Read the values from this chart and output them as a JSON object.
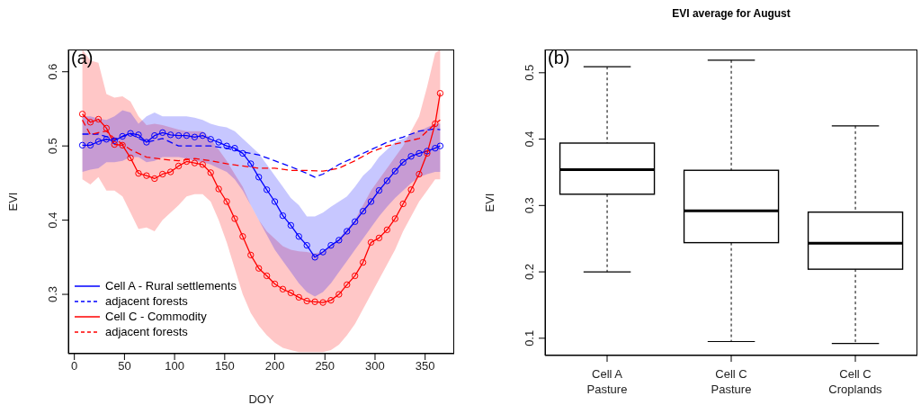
{
  "chart_data": [
    {
      "type": "line",
      "xlabel": "DOY",
      "ylabel": "EVI",
      "annotations": [
        "(a)"
      ],
      "x": [
        8,
        16,
        24,
        32,
        40,
        48,
        56,
        64,
        72,
        80,
        88,
        96,
        104,
        112,
        120,
        128,
        136,
        144,
        152,
        160,
        168,
        176,
        184,
        192,
        200,
        208,
        216,
        224,
        232,
        240,
        248,
        256,
        264,
        272,
        280,
        288,
        296,
        304,
        312,
        320,
        328,
        336,
        344,
        352,
        360,
        365
      ],
      "xlim": [
        -6,
        379
      ],
      "xticks": [
        0,
        50,
        100,
        150,
        200,
        250,
        300,
        350
      ],
      "ylim": [
        0.22,
        0.63
      ],
      "yticks": [
        0.3,
        0.4,
        0.5,
        0.6
      ],
      "legend": "bottom left",
      "series": [
        {
          "name": "Cell A - Rural settlements",
          "color": "#0000ff",
          "marker": "circle",
          "line_style": "solid",
          "values": [
            0.501,
            0.501,
            0.506,
            0.509,
            0.507,
            0.513,
            0.517,
            0.515,
            0.505,
            0.514,
            0.518,
            0.515,
            0.514,
            0.514,
            0.512,
            0.514,
            0.509,
            0.505,
            0.5,
            0.497,
            0.49,
            0.476,
            0.458,
            0.441,
            0.425,
            0.406,
            0.393,
            0.378,
            0.366,
            0.35,
            0.357,
            0.366,
            0.373,
            0.385,
            0.398,
            0.412,
            0.425,
            0.44,
            0.453,
            0.466,
            0.478,
            0.486,
            0.49,
            0.493,
            0.497,
            0.5
          ],
          "lower": [
            0.465,
            0.468,
            0.47,
            0.478,
            0.478,
            0.48,
            0.485,
            0.485,
            0.478,
            0.48,
            0.485,
            0.485,
            0.485,
            0.483,
            0.48,
            0.478,
            0.475,
            0.47,
            0.465,
            0.455,
            0.44,
            0.42,
            0.4,
            0.38,
            0.36,
            0.345,
            0.33,
            0.315,
            0.303,
            0.297,
            0.303,
            0.315,
            0.33,
            0.345,
            0.36,
            0.375,
            0.39,
            0.405,
            0.418,
            0.43,
            0.44,
            0.45,
            0.458,
            0.462,
            0.465,
            0.465
          ],
          "upper": [
            0.54,
            0.54,
            0.537,
            0.535,
            0.54,
            0.548,
            0.545,
            0.53,
            0.54,
            0.545,
            0.54,
            0.54,
            0.54,
            0.54,
            0.538,
            0.535,
            0.53,
            0.527,
            0.525,
            0.52,
            0.51,
            0.5,
            0.49,
            0.475,
            0.46,
            0.445,
            0.43,
            0.42,
            0.405,
            0.405,
            0.41,
            0.418,
            0.425,
            0.432,
            0.445,
            0.46,
            0.47,
            0.485,
            0.495,
            0.505,
            0.51,
            0.515,
            0.52,
            0.525,
            0.53,
            0.53
          ]
        },
        {
          "name": "adjacent forests",
          "color": "#0000ff",
          "marker": "none",
          "line_style": "dashed",
          "x": [
            8,
            24,
            40,
            56,
            72,
            88,
            104,
            120,
            136,
            152,
            168,
            184,
            200,
            216,
            232,
            240,
            248,
            264,
            280,
            296,
            312,
            328,
            344,
            360,
            365
          ],
          "values": [
            0.516,
            0.516,
            0.509,
            0.516,
            0.505,
            0.51,
            0.5,
            0.5,
            0.5,
            0.497,
            0.492,
            0.488,
            0.48,
            0.472,
            0.463,
            0.458,
            0.462,
            0.475,
            0.485,
            0.495,
            0.505,
            0.512,
            0.52,
            0.523,
            0.522
          ]
        },
        {
          "name": "Cell C - Commodity",
          "color": "#ff0000",
          "marker": "circle",
          "line_style": "solid",
          "values": [
            0.543,
            0.532,
            0.536,
            0.524,
            0.502,
            0.501,
            0.484,
            0.463,
            0.46,
            0.456,
            0.462,
            0.465,
            0.473,
            0.479,
            0.477,
            0.475,
            0.464,
            0.442,
            0.425,
            0.402,
            0.378,
            0.353,
            0.335,
            0.325,
            0.314,
            0.307,
            0.302,
            0.296,
            0.291,
            0.29,
            0.289,
            0.292,
            0.3,
            0.313,
            0.325,
            0.343,
            0.37,
            0.376,
            0.387,
            0.402,
            0.422,
            0.441,
            0.462,
            0.49,
            0.53,
            0.571
          ],
          "lower": [
            0.455,
            0.448,
            0.458,
            0.44,
            0.44,
            0.432,
            0.41,
            0.388,
            0.39,
            0.385,
            0.4,
            0.41,
            0.42,
            0.432,
            0.435,
            0.435,
            0.425,
            0.4,
            0.37,
            0.335,
            0.3,
            0.275,
            0.258,
            0.245,
            0.235,
            0.228,
            0.225,
            0.222,
            0.222,
            0.222,
            0.222,
            0.225,
            0.232,
            0.245,
            0.26,
            0.28,
            0.3,
            0.32,
            0.34,
            0.36,
            0.385,
            0.405,
            0.425,
            0.44,
            0.455,
            0.455
          ],
          "upper": [
            0.63,
            0.615,
            0.612,
            0.57,
            0.565,
            0.567,
            0.56,
            0.54,
            0.528,
            0.53,
            0.528,
            0.525,
            0.522,
            0.52,
            0.52,
            0.52,
            0.51,
            0.495,
            0.48,
            0.462,
            0.445,
            0.42,
            0.4,
            0.385,
            0.375,
            0.365,
            0.36,
            0.358,
            0.357,
            0.355,
            0.358,
            0.365,
            0.375,
            0.388,
            0.4,
            0.42,
            0.44,
            0.455,
            0.47,
            0.485,
            0.5,
            0.52,
            0.54,
            0.58,
            0.625,
            0.63
          ]
        },
        {
          "name": "adjacent forests",
          "color": "#ff0000",
          "marker": "none",
          "line_style": "dashed",
          "x": [
            8,
            16,
            24,
            32,
            40,
            56,
            72,
            88,
            104,
            120,
            136,
            152,
            168,
            184,
            200,
            216,
            232,
            248,
            264,
            280,
            296,
            312,
            328,
            344,
            360,
            365
          ],
          "values": [
            0.535,
            0.515,
            0.518,
            0.52,
            0.51,
            0.495,
            0.485,
            0.482,
            0.48,
            0.483,
            0.48,
            0.476,
            0.473,
            0.47,
            0.47,
            0.467,
            0.467,
            0.466,
            0.47,
            0.48,
            0.492,
            0.5,
            0.505,
            0.51,
            0.53,
            0.535
          ]
        }
      ]
    },
    {
      "type": "box",
      "title": "EVI average for August",
      "ylabel": "EVI",
      "annotations": [
        "(b)"
      ],
      "categories": [
        "Cell A\nPasture",
        "Cell C\nPasture",
        "Cell C\nCroplands"
      ],
      "ylim": [
        0.074,
        0.535
      ],
      "yticks": [
        0.1,
        0.2,
        0.3,
        0.4,
        0.5
      ],
      "boxes": [
        {
          "low": 0.2,
          "q1": 0.317,
          "median": 0.354,
          "q3": 0.394,
          "high": 0.509
        },
        {
          "low": 0.095,
          "q1": 0.244,
          "median": 0.292,
          "q3": 0.353,
          "high": 0.519
        },
        {
          "low": 0.092,
          "q1": 0.204,
          "median": 0.243,
          "q3": 0.29,
          "high": 0.42
        }
      ]
    }
  ]
}
